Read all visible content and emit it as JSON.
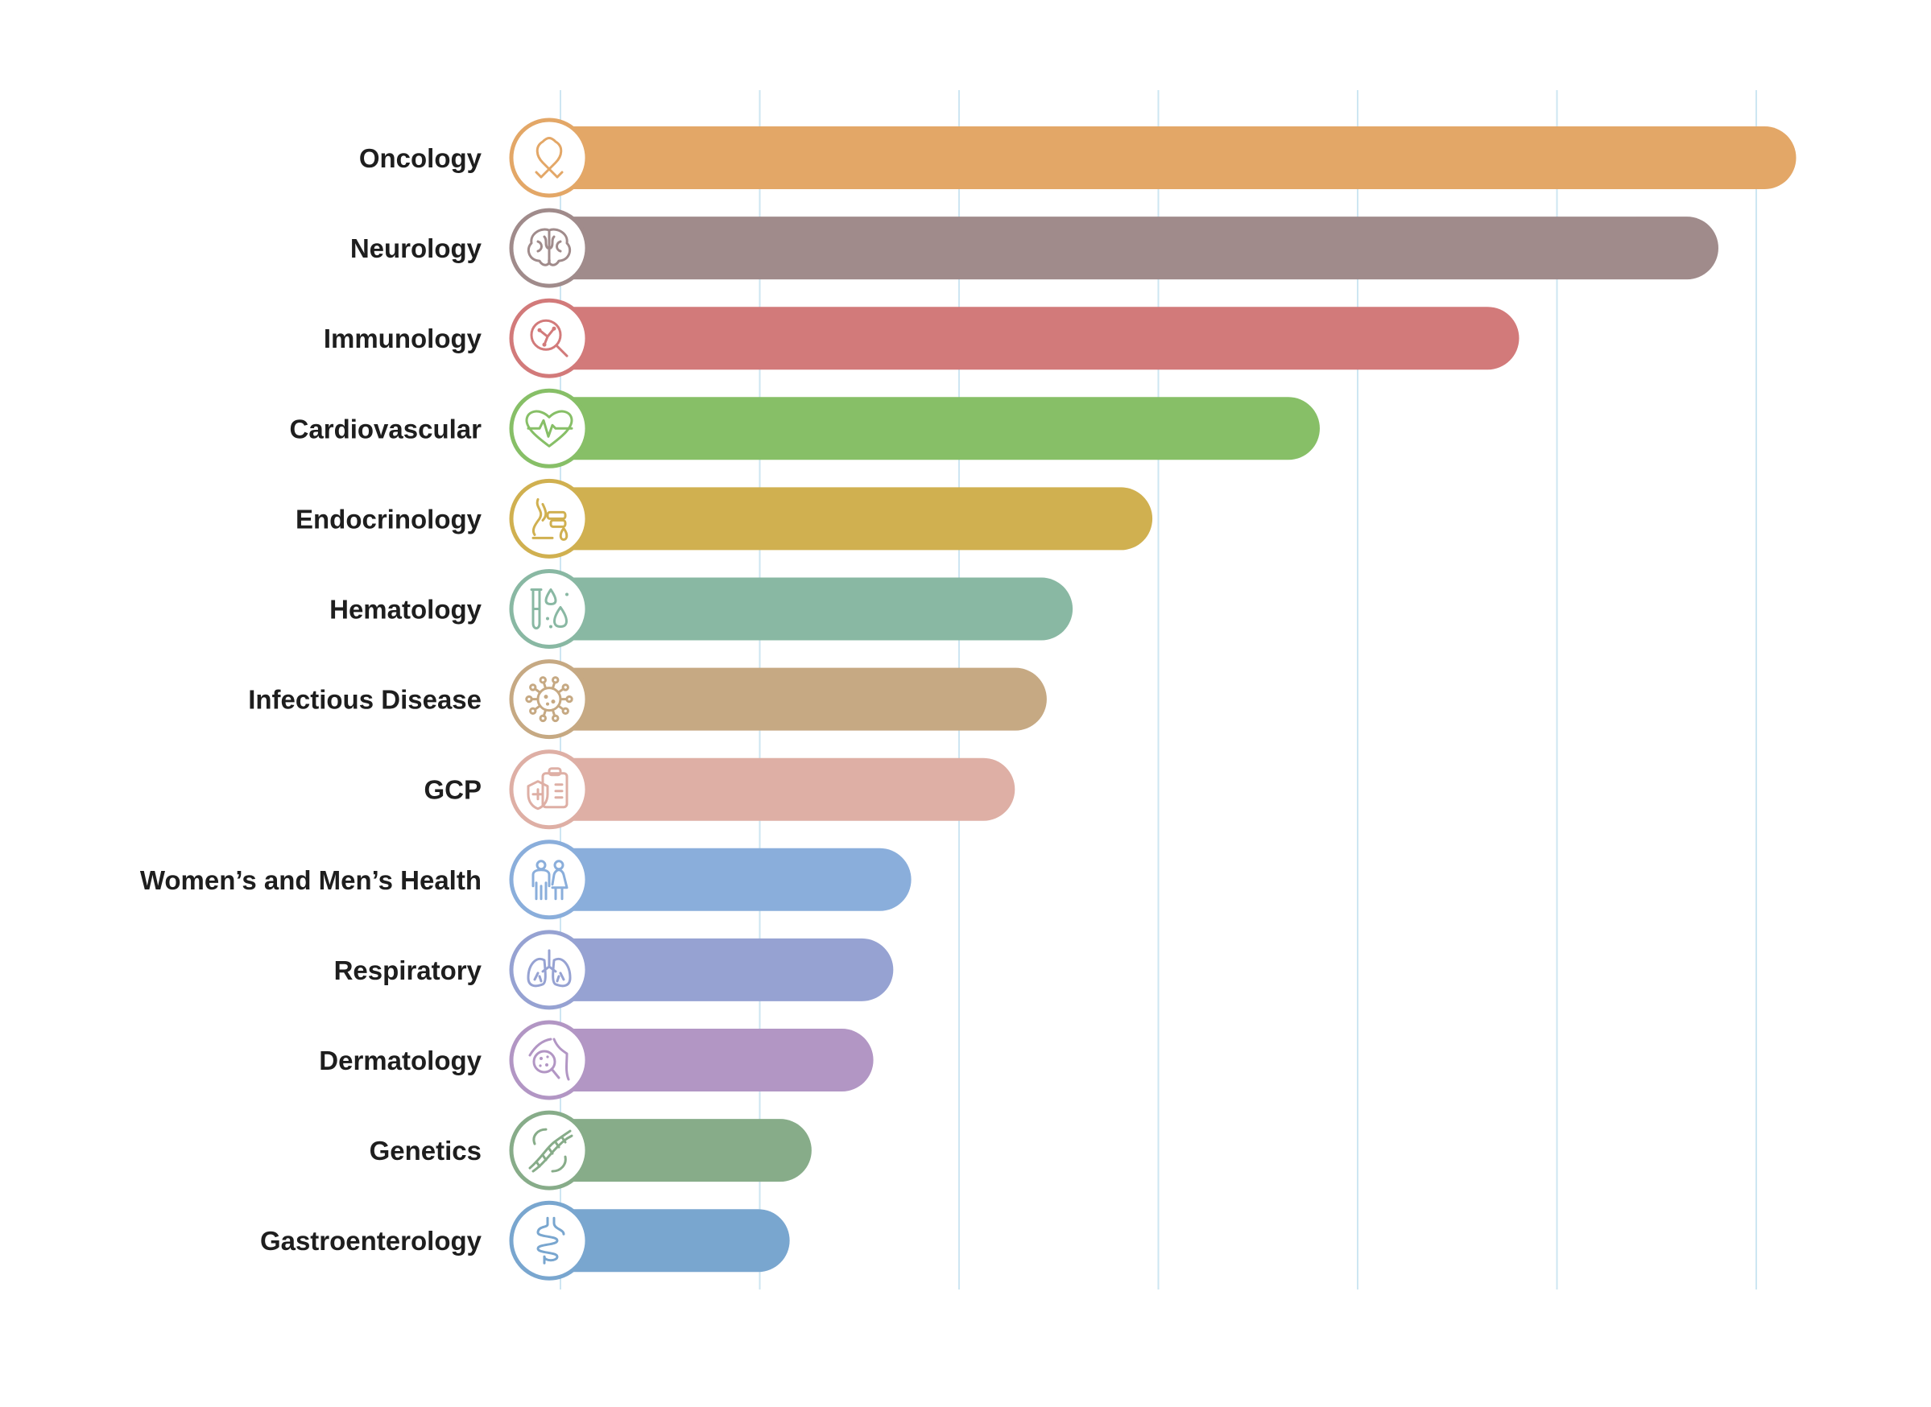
{
  "chart_data": {
    "type": "bar",
    "orientation": "horizontal",
    "title": "",
    "xlabel": "",
    "ylabel": "",
    "xlim": [
      0,
      6.2
    ],
    "grid": true,
    "legend": "none",
    "categories": [
      "Oncology",
      "Neurology",
      "Immunology",
      "Cardiovascular",
      "Endocrinology",
      "Hematology",
      "Infectious Disease",
      "GCP",
      "Women’s and Men’s Health",
      "Respiratory",
      "Dermatology",
      "Genetics",
      "Gastroenterology"
    ],
    "values": [
      6.2,
      5.81,
      4.81,
      3.81,
      2.97,
      2.57,
      2.44,
      2.28,
      1.76,
      1.67,
      1.57,
      1.26,
      1.15
    ],
    "colors": [
      "#e3a767",
      "#a08b8b",
      "#d27a7a",
      "#87bf67",
      "#d0b050",
      "#89b8a3",
      "#c6a983",
      "#deafa5",
      "#8aaedb",
      "#96a2d2",
      "#b296c4",
      "#87ac89",
      "#79a6cf"
    ],
    "icons": [
      "ribbon-icon",
      "brain-icon",
      "microscope-icon",
      "heart-pulse-icon",
      "hormone-icon",
      "test-tube-icon",
      "virus-icon",
      "clipboard-shield-icon",
      "people-icon",
      "lungs-icon",
      "skin-magnifier-icon",
      "dna-icon",
      "intestine-icon"
    ]
  }
}
